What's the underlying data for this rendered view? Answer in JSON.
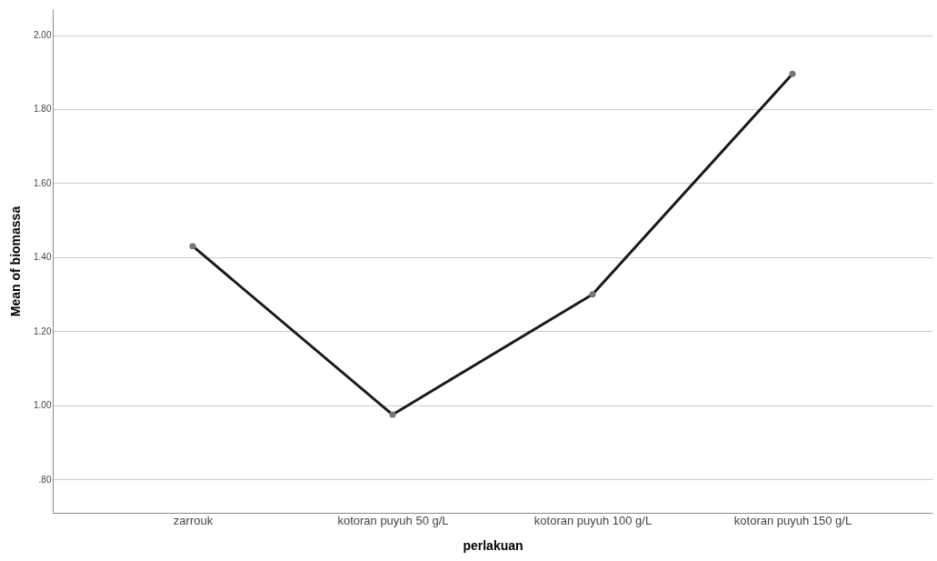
{
  "chart_data": {
    "type": "line",
    "xlabel": "perlakuan",
    "ylabel": "Mean of biomassa",
    "categories": [
      "zarrouk",
      "kotoran puyuh 50 g/L",
      "kotoran puyuh 100 g/L",
      "kotoran puyuh 150 g/L"
    ],
    "series": [
      {
        "color": "#1a1a1a",
        "values": [
          1.43,
          0.975,
          1.3,
          1.895
        ]
      }
    ],
    "ylim": [
      0.71,
      2.07
    ],
    "yticks": [
      {
        "value": 0.8,
        "label": ".80"
      },
      {
        "value": 1.0,
        "label": "1.00"
      },
      {
        "value": 1.2,
        "label": "1.20"
      },
      {
        "value": 1.4,
        "label": "1.40"
      },
      {
        "value": 1.6,
        "label": "1.60"
      },
      {
        "value": 1.8,
        "label": "1.80"
      },
      {
        "value": 2.0,
        "label": "2.00"
      }
    ],
    "grid": "y",
    "marker": "circle",
    "line_style": "solid"
  }
}
